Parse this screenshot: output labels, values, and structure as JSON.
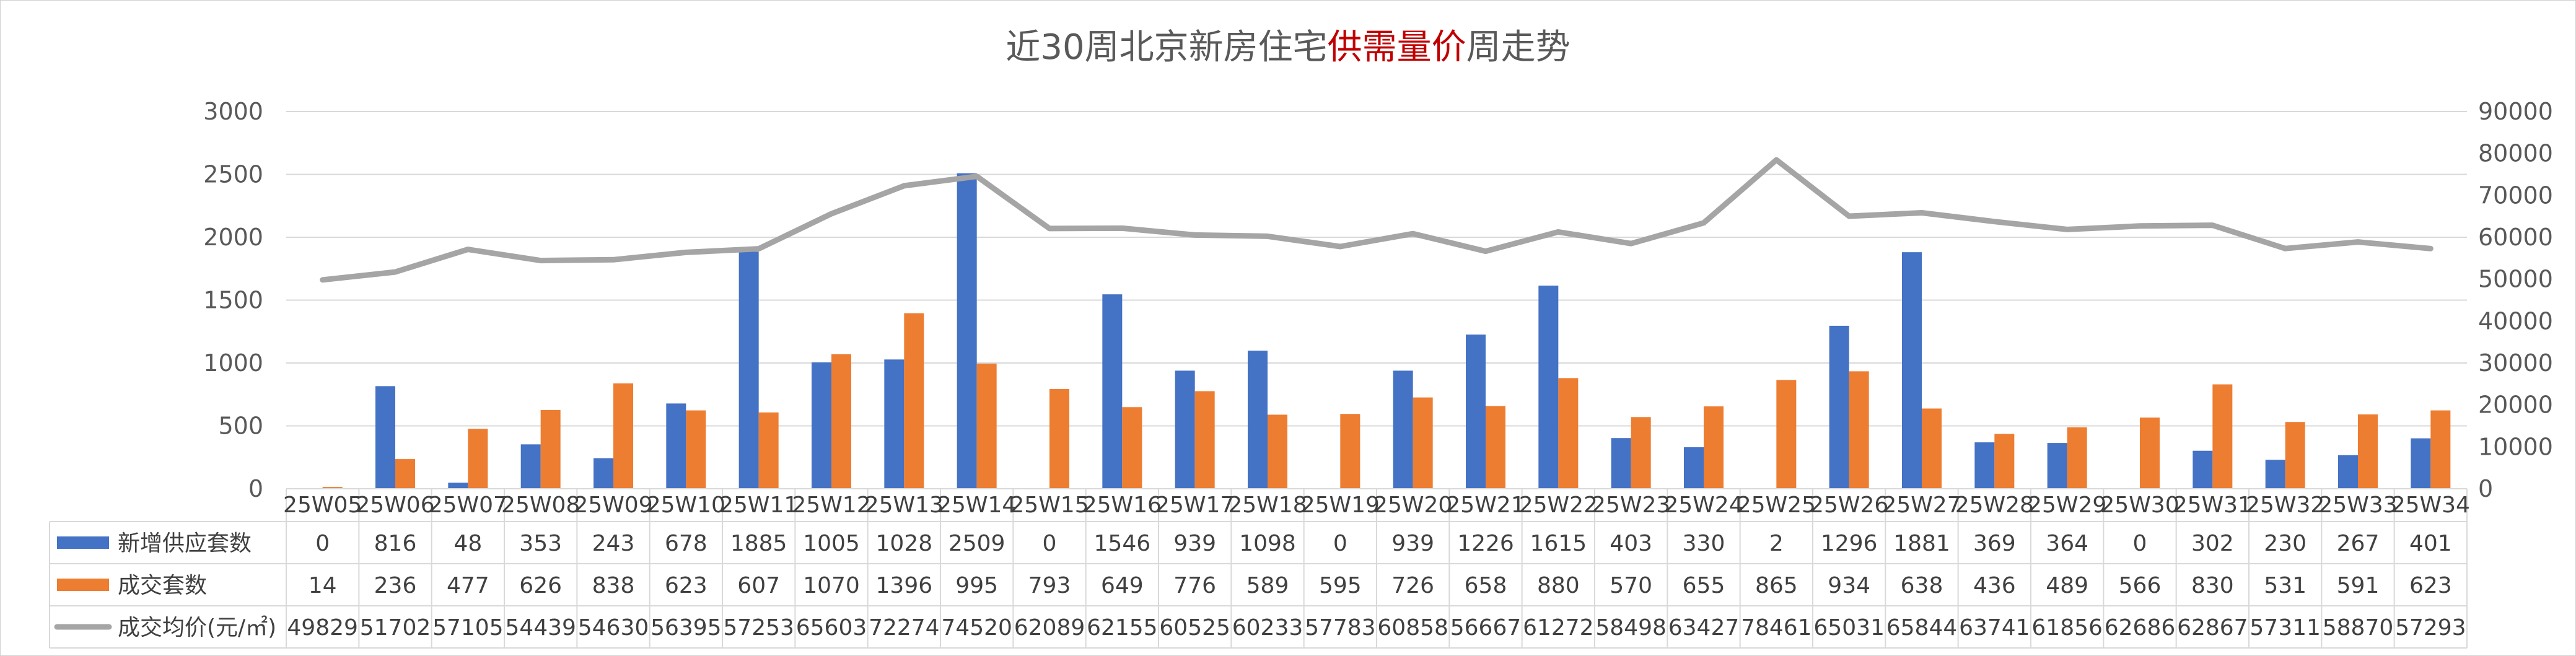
{
  "chart_data": {
    "type": "bar",
    "title_parts": {
      "prefix": "近30周北京新房住宅",
      "highlight": "供需量价",
      "suffix": "周走势"
    },
    "categories": [
      "25W05",
      "25W06",
      "25W07",
      "25W08",
      "25W09",
      "25W10",
      "25W11",
      "25W12",
      "25W13",
      "25W14",
      "25W15",
      "25W16",
      "25W17",
      "25W18",
      "25W19",
      "25W20",
      "25W21",
      "25W22",
      "25W23",
      "25W24",
      "25W25",
      "25W26",
      "25W27",
      "25W28",
      "25W29",
      "25W30",
      "25W31",
      "25W32",
      "25W33",
      "25W34"
    ],
    "y_left": {
      "min": 0,
      "max": 3000,
      "ticks": [
        0,
        500,
        1000,
        1500,
        2000,
        2500,
        3000
      ]
    },
    "y_right": {
      "min": 0,
      "max": 90000,
      "ticks": [
        0,
        10000,
        20000,
        30000,
        40000,
        50000,
        60000,
        70000,
        80000,
        90000
      ]
    },
    "grid": true,
    "legend": "data-table",
    "series": [
      {
        "name": "新增供应套数",
        "kind": "bar",
        "axis": "left",
        "color": "#4472c4",
        "values": [
          0,
          816,
          48,
          353,
          243,
          678,
          1885,
          1005,
          1028,
          2509,
          0,
          1546,
          939,
          1098,
          0,
          939,
          1226,
          1615,
          403,
          330,
          2,
          1296,
          1881,
          369,
          364,
          0,
          302,
          230,
          267,
          401
        ]
      },
      {
        "name": "成交套数",
        "kind": "bar",
        "axis": "left",
        "color": "#ed7d31",
        "values": [
          14,
          236,
          477,
          626,
          838,
          623,
          607,
          1070,
          1396,
          995,
          793,
          649,
          776,
          589,
          595,
          726,
          658,
          880,
          570,
          655,
          865,
          934,
          638,
          436,
          489,
          566,
          830,
          531,
          591,
          623
        ]
      },
      {
        "name": "成交均价(元/㎡)",
        "kind": "line",
        "axis": "right",
        "color": "#a5a5a5",
        "values": [
          49829,
          51702,
          57105,
          54439,
          54630,
          56395,
          57253,
          65603,
          72274,
          74520,
          62089,
          62155,
          60525,
          60233,
          57783,
          60858,
          56667,
          61272,
          58498,
          63427,
          78461,
          65031,
          65844,
          63741,
          61856,
          62686,
          62867,
          57311,
          58870,
          57293
        ]
      }
    ]
  }
}
